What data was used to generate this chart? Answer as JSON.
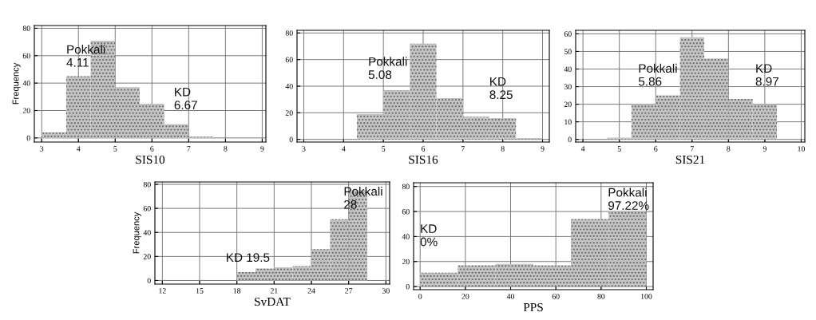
{
  "chart_data": [
    {
      "type": "histogram",
      "xlabel": "SIS10",
      "ylabel": "Frequency",
      "bins": [
        3,
        3.667,
        4.333,
        5,
        5.667,
        6.333,
        7,
        7.667
      ],
      "values": [
        4,
        45,
        71,
        37,
        25,
        10,
        1
      ],
      "color": "#c4c4c4",
      "xlim": [
        2.8,
        9.1
      ],
      "ylim": [
        -3,
        82
      ],
      "xticks": [
        3,
        4,
        5,
        6,
        7,
        8,
        9
      ],
      "yticks": [
        0,
        20,
        40,
        60,
        80
      ],
      "grid": true,
      "annotations": [
        "Pokkali\n4.11",
        "KD\n6.67"
      ]
    },
    {
      "type": "histogram",
      "xlabel": "SIS16",
      "bins": [
        4.333,
        5,
        5.667,
        6.333,
        7,
        7.667,
        8.333,
        9
      ],
      "values": [
        19,
        37,
        72,
        31,
        17,
        16,
        1
      ],
      "color": "#c4c4c4",
      "xlim": [
        2.83,
        9.17
      ],
      "ylim": [
        -2,
        82
      ],
      "xticks": [
        3,
        4,
        5,
        6,
        7,
        8,
        9
      ],
      "yticks": [
        0,
        20,
        40,
        60,
        80
      ],
      "grid": true,
      "annotations": [
        "Pokkali\n5.08",
        "KD\n8.25"
      ]
    },
    {
      "type": "histogram",
      "xlabel": "SIS21",
      "bins": [
        4.667,
        5.333,
        6,
        6.667,
        7.333,
        8,
        8.667,
        9.333
      ],
      "values": [
        1,
        20,
        25,
        58,
        46,
        23,
        20
      ],
      "color": "#c4c4c4",
      "xlim": [
        3.8,
        10.1
      ],
      "ylim": [
        -1.5,
        62
      ],
      "xticks": [
        4,
        5,
        6,
        7,
        8,
        9,
        10
      ],
      "yticks": [
        0,
        10,
        20,
        30,
        40,
        50,
        60
      ],
      "grid": true,
      "annotations": [
        "Pokkali\n5.86",
        "KD\n8.97"
      ]
    },
    {
      "type": "histogram",
      "xlabel": "SvDAT",
      "ylabel": "Frequency",
      "bins": [
        18,
        19.5,
        21,
        22.5,
        24,
        25.5,
        27,
        28.5
      ],
      "values": [
        7,
        10,
        11,
        12,
        26,
        51,
        75
      ],
      "color": "#c4c4c4",
      "xlim": [
        11.4,
        30.3
      ],
      "ylim": [
        -3,
        82
      ],
      "xticks": [
        12,
        15,
        18,
        21,
        24,
        27,
        30
      ],
      "yticks": [
        0,
        20,
        40,
        60,
        80
      ],
      "grid": true,
      "annotations": [
        "KD 19.5",
        "Pokkali\n28"
      ]
    },
    {
      "type": "histogram",
      "xlabel": "PPS",
      "bins": [
        0,
        16.67,
        33.33,
        50,
        66.67,
        83.33,
        100
      ],
      "values": [
        11,
        17,
        18,
        17,
        54,
        60
      ],
      "color": "#c4c4c4",
      "xlim": [
        -2.9,
        103
      ],
      "ylim": [
        -2.5,
        83
      ],
      "xticks": [
        0,
        20,
        40,
        60,
        80,
        100
      ],
      "yticks": [
        0,
        20,
        40,
        60,
        80
      ],
      "grid": true,
      "annotations": [
        "KD\n0%",
        "Pokkali\n97.22%"
      ]
    }
  ]
}
